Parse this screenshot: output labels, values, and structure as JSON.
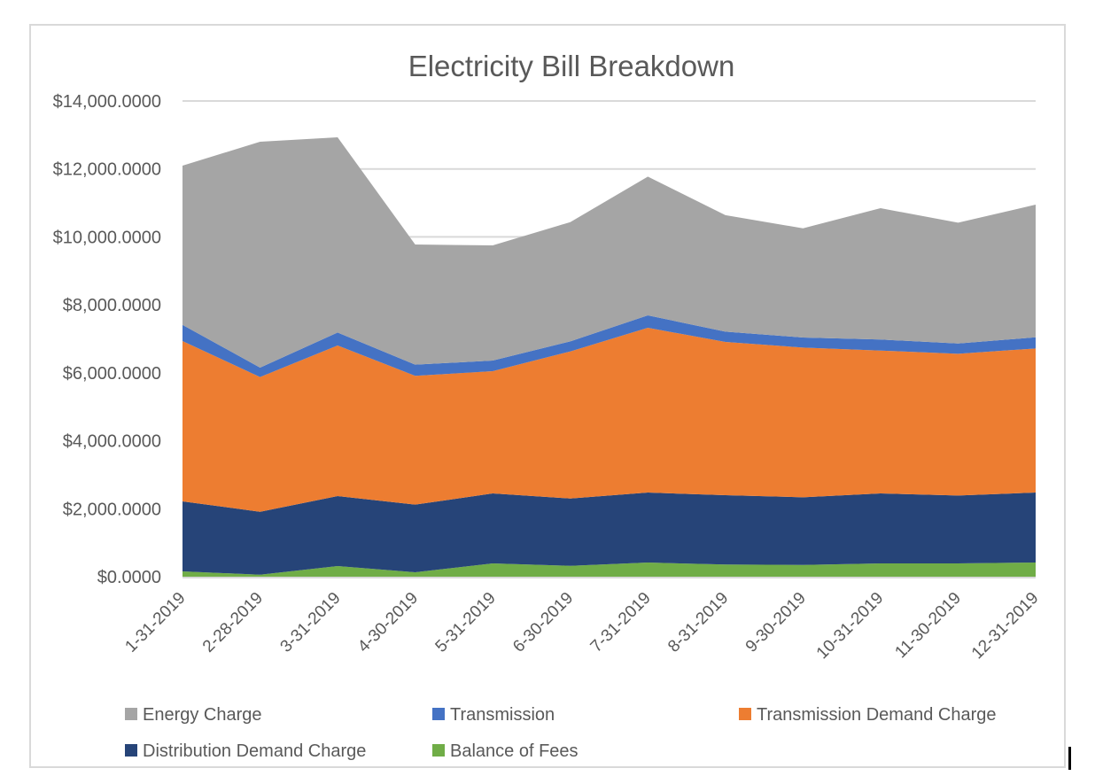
{
  "chart_data": {
    "type": "area",
    "stacked": true,
    "title": "Electricity Bill Breakdown",
    "xlabel": "",
    "ylabel": "",
    "ylim": [
      0,
      14000
    ],
    "yticks": [
      0,
      2000,
      4000,
      6000,
      8000,
      10000,
      12000,
      14000
    ],
    "ytick_labels": [
      "$0.0000",
      "$2,000.0000",
      "$4,000.0000",
      "$6,000.0000",
      "$8,000.0000",
      "$10,000.0000",
      "$12,000.0000",
      "$14,000.0000"
    ],
    "grid": true,
    "legend_position": "bottom",
    "categories": [
      "1-31-2019",
      "2-28-2019",
      "3-31-2019",
      "4-30-2019",
      "5-31-2019",
      "6-30-2019",
      "7-31-2019",
      "8-31-2019",
      "9-30-2019",
      "10-31-2019",
      "11-30-2019",
      "12-31-2019"
    ],
    "series": [
      {
        "name": "Balance of Fees",
        "color": "#70ad47",
        "values": [
          156,
          60,
          313,
          130,
          391,
          321,
          417,
          357,
          347,
          391,
          391,
          417
        ]
      },
      {
        "name": "Distribution Demand Charge",
        "color": "#264478",
        "values": [
          2060,
          1851,
          2059,
          1990,
          2059,
          1981,
          2059,
          2041,
          1990,
          2059,
          1999,
          2059
        ]
      },
      {
        "name": "Transmission Demand Charge",
        "color": "#ed7d31",
        "values": [
          4719,
          3965,
          4432,
          3791,
          3598,
          4328,
          4849,
          4511,
          4407,
          4205,
          4171,
          4242
        ]
      },
      {
        "name": "Transmission",
        "color": "#4472c4",
        "values": [
          477,
          277,
          382,
          329,
          313,
          296,
          365,
          304,
          295,
          324,
          303,
          328
        ]
      },
      {
        "name": "Energy Charge",
        "color": "#a5a5a5",
        "values": [
          4684,
          6647,
          5744,
          3536,
          3389,
          3509,
          4085,
          3427,
          3214,
          3866,
          3555,
          3903
        ]
      }
    ],
    "legend": [
      {
        "name": "Energy Charge",
        "color": "#a5a5a5"
      },
      {
        "name": "Transmission",
        "color": "#4472c4"
      },
      {
        "name": "Transmission Demand Charge",
        "color": "#ed7d31"
      },
      {
        "name": "Distribution Demand Charge",
        "color": "#264478"
      },
      {
        "name": "Balance of Fees",
        "color": "#70ad47"
      }
    ]
  },
  "colors": {
    "gridline": "#d9d9d9",
    "text": "#595959",
    "frame": "#d9d9d9"
  }
}
